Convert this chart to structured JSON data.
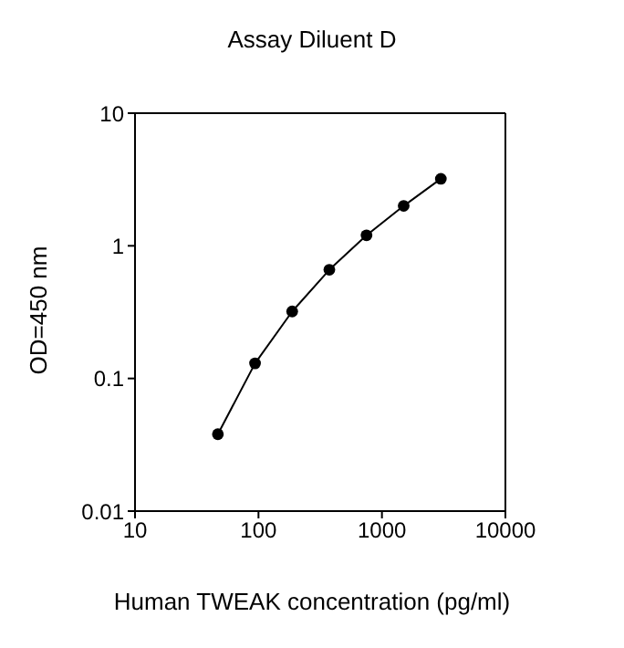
{
  "chart_data": {
    "type": "line",
    "title": "Assay Diluent D",
    "xlabel": "Human TWEAK concentration (pg/ml)",
    "ylabel": "OD=450 nm",
    "x": [
      46.9,
      93.8,
      187.5,
      375,
      750,
      1500,
      3000
    ],
    "series": [
      {
        "color": "#000000",
        "values": [
          0.038,
          0.13,
          0.32,
          0.66,
          1.2,
          2.0,
          3.2
        ]
      }
    ],
    "log": "xy",
    "xlim": [
      10,
      10000
    ],
    "xticks": [
      10,
      100,
      1000,
      10000
    ],
    "ylim": [
      0.01,
      10
    ],
    "yticks": [
      0.01,
      0.1,
      1,
      10
    ],
    "grid": false,
    "marker": "circle",
    "line_style": "solid"
  }
}
